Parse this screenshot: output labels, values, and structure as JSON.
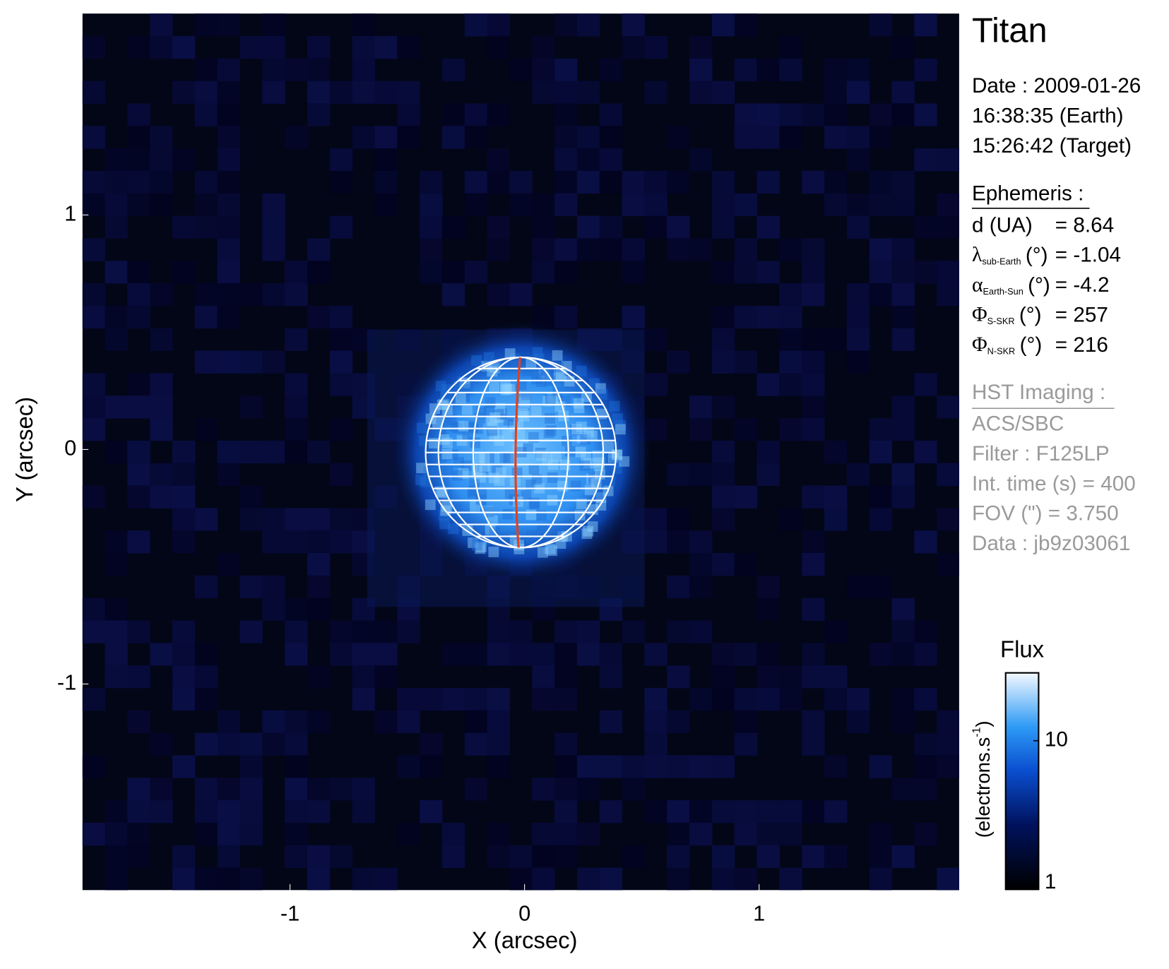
{
  "chart_data": {
    "type": "image",
    "xlabel": "X (arcsec)",
    "ylabel": "Y (arcsec)",
    "xlim": [
      -1.885,
      1.853
    ],
    "ylim": [
      -1.879,
      1.859
    ],
    "xticks": [
      -1,
      0,
      1
    ],
    "yticks": [
      -1,
      0,
      1
    ],
    "colorbar": {
      "title": "Flux",
      "label": "(electrons.s",
      "label_sup": "-1",
      "label_end": ")",
      "scale": "log",
      "clim": [
        0.9,
        30
      ],
      "ticks": [
        1,
        10
      ]
    }
  },
  "info": {
    "title": "Titan",
    "date_lines": [
      "Date : 2009-01-26",
      "16:38:35 (Earth)",
      "15:26:42 (Target)"
    ],
    "ephemeris": {
      "heading": "Ephemeris :",
      "rows": [
        {
          "symbol": "d (UA)",
          "value": "= 8.64"
        },
        {
          "symbol": "λ",
          "sub": "sub-Earth",
          "unit": "(°)",
          "value": "= -1.04"
        },
        {
          "symbol": "α",
          "sub": "Earth-Sun",
          "unit": "(°)",
          "value": "= -4.2"
        },
        {
          "symbol": "Φ",
          "sub": "S-SKR",
          "unit": "(°)",
          "value": "= 257"
        },
        {
          "symbol": "Φ",
          "sub": "N-SKR",
          "unit": "(°)",
          "value": "= 216"
        }
      ]
    },
    "hst": {
      "heading": "HST Imaging :",
      "lines": [
        "ACS/SBC",
        "Filter : F125LP",
        "Int. time (s) = 400",
        "FOV (\") = 3.750",
        "Data : jb9z03061"
      ]
    }
  }
}
